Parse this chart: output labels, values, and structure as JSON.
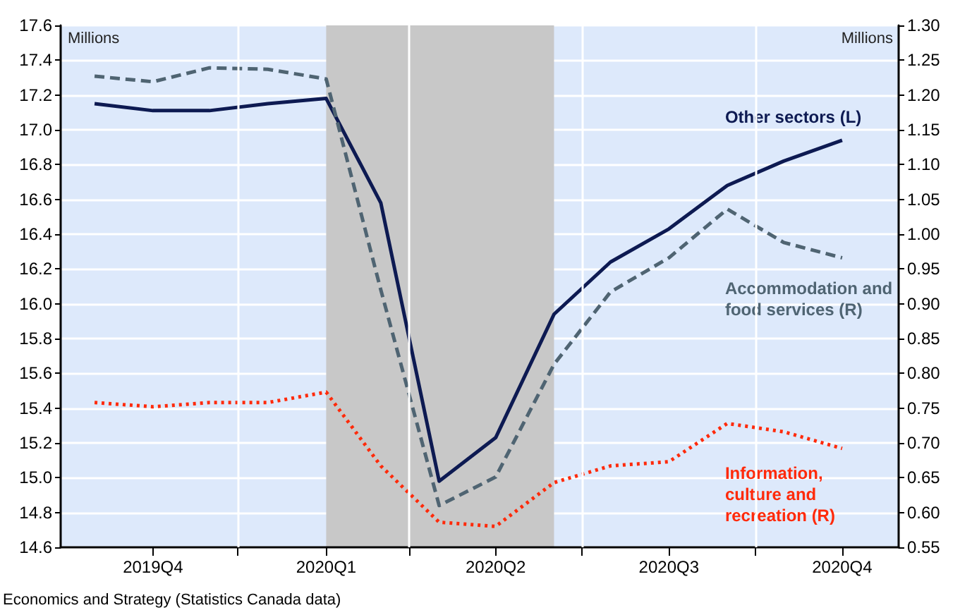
{
  "chart_data": {
    "type": "line",
    "ylabel": "Millions",
    "y2label": "Millions",
    "x": [
      "2019-10",
      "2019-11",
      "2019-12",
      "2020-01",
      "2020-02",
      "2020-03",
      "2020-04",
      "2020-05",
      "2020-06",
      "2020-07",
      "2020-08",
      "2020-09",
      "2020-10",
      "2020-11"
    ],
    "xlim": [
      "2019-09-13",
      "2020-12-01"
    ],
    "xticks": [
      {
        "value": "2019-11",
        "label": "2019Q4"
      },
      {
        "value": "2019-12-16",
        "label": null
      },
      {
        "value": "2020-02",
        "label": "2020Q1"
      },
      {
        "value": "2020-03-16",
        "label": null
      },
      {
        "value": "2020-05",
        "label": "2020Q2"
      },
      {
        "value": "2020-06-16",
        "label": null
      },
      {
        "value": "2020-08",
        "label": "2020Q3"
      },
      {
        "value": "2020-09-16",
        "label": null
      },
      {
        "value": "2020-11",
        "label": "2020Q4"
      }
    ],
    "ylim": [
      14.6,
      17.6
    ],
    "yticks": [
      14.6,
      14.8,
      {
        "value": 15,
        "label": "15.0"
      },
      15.2,
      15.4,
      15.6,
      15.8,
      {
        "value": 16,
        "label": "16.0"
      },
      16.2,
      16.4,
      16.6,
      16.8,
      {
        "value": 17,
        "label": "17.0"
      },
      17.2,
      17.4,
      17.6
    ],
    "y2lim": [
      0.55,
      1.3
    ],
    "y2ticks": [
      0.55,
      {
        "value": 0.6,
        "label": "0.60"
      },
      0.65,
      {
        "value": 0.7,
        "label": "0.70"
      },
      0.75,
      {
        "value": 0.8,
        "label": "0.80"
      },
      0.85,
      {
        "value": 0.9,
        "label": "0.90"
      },
      0.95,
      {
        "value": 1,
        "label": "1.00"
      },
      1.05,
      {
        "value": 1.1,
        "label": "1.10"
      },
      1.15,
      {
        "value": 1.2,
        "label": "1.20"
      },
      1.25,
      {
        "value": 1.3,
        "label": "1.30"
      }
    ],
    "series": [
      {
        "name": "Other sectors (L)",
        "color": "#0d1a52",
        "line_style": "solid",
        "values": [
          17.15,
          17.11,
          17.11,
          17.15,
          17.18,
          16.58,
          14.98,
          15.23,
          15.94,
          16.24,
          16.43,
          16.68,
          16.82,
          16.94
        ]
      },
      {
        "name": "Accommodation and food services (R)",
        "color": "#4f6472",
        "line_style": "dashed",
        "axis": "y2",
        "values": [
          1.227,
          1.219,
          1.239,
          1.237,
          1.223,
          0.92,
          0.61,
          0.651,
          0.813,
          0.917,
          0.966,
          1.036,
          0.988,
          0.966
        ]
      },
      {
        "name": "Information, culture and recreation (R)",
        "color": "#ff2a0a",
        "line_style": "dotted",
        "axis": "y2",
        "values": [
          0.758,
          0.752,
          0.758,
          0.758,
          0.773,
          0.667,
          0.586,
          0.58,
          0.643,
          0.667,
          0.673,
          0.728,
          0.716,
          0.692
        ]
      }
    ],
    "bands": [
      {
        "axis": "x",
        "from": "2020-02",
        "to": "2020-06",
        "color": "#c8c8c8"
      }
    ],
    "grid": true,
    "legend": false,
    "marker": "none",
    "annotations": [
      "Economics and Strategy (Statistics Canada data)"
    ]
  }
}
